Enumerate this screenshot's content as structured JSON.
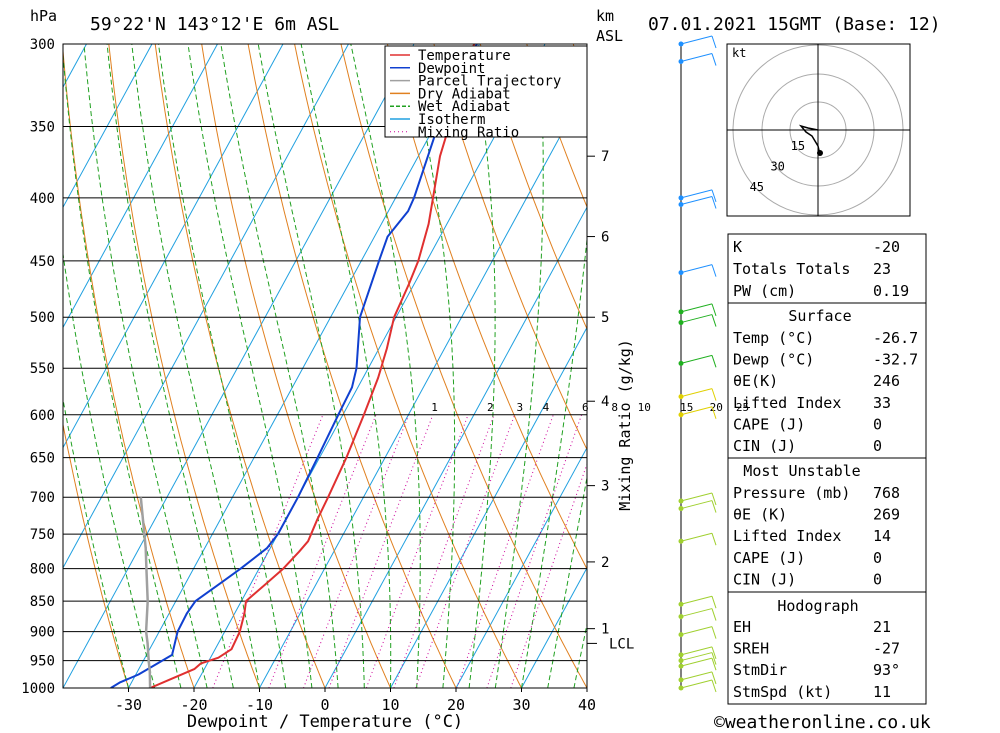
{
  "header": {
    "location": "59°22'N 143°12'E 6m ASL",
    "datetime": "07.01.2021 15GMT (Base: 12)",
    "pressure_unit": "hPa",
    "height_unit_line1": "km",
    "height_unit_line2": "ASL"
  },
  "chart_data": {
    "type": "line",
    "title": "59°22'N 143°12'E 6m ASL",
    "xlabel": "Dewpoint / Temperature (°C)",
    "ylabel": "hPa",
    "y2label": "Mixing Ratio (g/kg)",
    "xlim": [
      -40,
      40
    ],
    "ylim": [
      1000,
      300
    ],
    "y_scale": "log",
    "x_ticks": [
      -30,
      -20,
      -10,
      0,
      10,
      20,
      30,
      40
    ],
    "pressure_levels": [
      300,
      350,
      400,
      450,
      500,
      550,
      600,
      650,
      700,
      750,
      800,
      850,
      900,
      950,
      1000
    ],
    "km_ticks": [
      {
        "label": "1",
        "p": 895
      },
      {
        "label": "2",
        "p": 790
      },
      {
        "label": "3",
        "p": 685
      },
      {
        "label": "4",
        "p": 585
      },
      {
        "label": "5",
        "p": 500
      },
      {
        "label": "6",
        "p": 430
      },
      {
        "label": "7",
        "p": 370
      }
    ],
    "lcl": {
      "label": "LCL",
      "p": 920
    },
    "mixing_ratio_labels": [
      "1",
      "2",
      "3",
      "4",
      "6",
      "8",
      "10",
      "15",
      "20",
      "25"
    ],
    "mixing_ratio_label_x": [
      -6,
      2.5,
      7,
      11,
      17,
      21.5,
      26,
      32.5,
      37,
      41
    ],
    "legend": [
      {
        "name": "Temperature",
        "color": "#e03030"
      },
      {
        "name": "Dewpoint",
        "color": "#1040d0"
      },
      {
        "name": "Parcel Trajectory",
        "color": "#a0a0a0"
      },
      {
        "name": "Dry Adiabat",
        "color": "#e08020"
      },
      {
        "name": "Wet Adiabat",
        "color": "#20a020"
      },
      {
        "name": "Isotherm",
        "color": "#20a0e0"
      },
      {
        "name": "Mixing Ratio",
        "color": "#cc0099"
      }
    ],
    "series": [
      {
        "name": "Temperature",
        "points": [
          [
            1000,
            -26.7
          ],
          [
            985,
            -24.5
          ],
          [
            965,
            -21.5
          ],
          [
            955,
            -21
          ],
          [
            945,
            -18.8
          ],
          [
            930,
            -17.5
          ],
          [
            900,
            -17.7
          ],
          [
            870,
            -18.5
          ],
          [
            850,
            -19.3
          ],
          [
            825,
            -17.8
          ],
          [
            800,
            -16.3
          ],
          [
            775,
            -15.3
          ],
          [
            760,
            -14.8
          ],
          [
            730,
            -15.2
          ],
          [
            700,
            -15.4
          ],
          [
            650,
            -15.9
          ],
          [
            600,
            -16.8
          ],
          [
            560,
            -17.7
          ],
          [
            530,
            -18.8
          ],
          [
            500,
            -20.3
          ],
          [
            470,
            -20.8
          ],
          [
            450,
            -21.3
          ],
          [
            420,
            -22.8
          ],
          [
            400,
            -24.3
          ],
          [
            370,
            -26.7
          ],
          [
            350,
            -27.8
          ],
          [
            325,
            -29.8
          ],
          [
            300,
            -30.8
          ]
        ]
      },
      {
        "name": "Dewpoint",
        "points": [
          [
            1000,
            -32.7
          ],
          [
            990,
            -31.8
          ],
          [
            975,
            -29.6
          ],
          [
            955,
            -27.6
          ],
          [
            940,
            -26.1
          ],
          [
            900,
            -27.2
          ],
          [
            870,
            -27.3
          ],
          [
            850,
            -27.0
          ],
          [
            820,
            -24.5
          ],
          [
            800,
            -22.8
          ],
          [
            770,
            -20.5
          ],
          [
            750,
            -20.0
          ],
          [
            700,
            -20.0
          ],
          [
            650,
            -20.3
          ],
          [
            600,
            -20.7
          ],
          [
            570,
            -20.9
          ],
          [
            550,
            -21.8
          ],
          [
            500,
            -25.5
          ],
          [
            450,
            -27.3
          ],
          [
            430,
            -28.0
          ],
          [
            410,
            -27.0
          ],
          [
            400,
            -27.2
          ],
          [
            350,
            -29.5
          ],
          [
            320,
            -30.5
          ],
          [
            300,
            -30.4
          ]
        ]
      },
      {
        "name": "Parcel Trajectory",
        "points": [
          [
            1000,
            -26.7
          ],
          [
            970,
            -28.1
          ],
          [
            950,
            -29.2
          ],
          [
            920,
            -30.8
          ],
          [
            900,
            -32.0
          ],
          [
            850,
            -34.3
          ],
          [
            800,
            -37.2
          ],
          [
            770,
            -39.0
          ],
          [
            700,
            -44.0
          ]
        ]
      }
    ],
    "wind_barbs_p": [
      300,
      310,
      400,
      405,
      460,
      495,
      505,
      545,
      580,
      600,
      705,
      715,
      760,
      855,
      875,
      905,
      940,
      950,
      960,
      985,
      1000
    ]
  },
  "hodograph": {
    "unit": "kt",
    "rings": [
      "15",
      "30",
      "45"
    ]
  },
  "indices": {
    "k_label": "K",
    "k_value": "-20",
    "tt_label": "Totals Totals",
    "tt_value": "23",
    "pw_label": "PW (cm)",
    "pw_value": "0.19"
  },
  "surface": {
    "title": "Surface",
    "rows": [
      {
        "label": "Temp (°C)",
        "value": "-26.7"
      },
      {
        "label": "Dewp (°C)",
        "value": "-32.7"
      },
      {
        "label": "θE(K)",
        "value": "246"
      },
      {
        "label": "Lifted Index",
        "value": "33"
      },
      {
        "label": "CAPE (J)",
        "value": "0"
      },
      {
        "label": "CIN (J)",
        "value": "0"
      }
    ]
  },
  "most_unstable": {
    "title": "Most Unstable",
    "rows": [
      {
        "label": "Pressure (mb)",
        "value": "768"
      },
      {
        "label": "θE (K)",
        "value": "269"
      },
      {
        "label": "Lifted Index",
        "value": "14"
      },
      {
        "label": "CAPE (J)",
        "value": "0"
      },
      {
        "label": "CIN (J)",
        "value": "0"
      }
    ]
  },
  "hodograph_table": {
    "title": "Hodograph",
    "rows": [
      {
        "label": "EH",
        "value": "21"
      },
      {
        "label": "SREH",
        "value": "-27"
      },
      {
        "label": "StmDir",
        "value": "93°"
      },
      {
        "label": "StmSpd (kt)",
        "value": "11"
      }
    ]
  },
  "footer": {
    "copyright": "©weatheronline.co.uk"
  }
}
